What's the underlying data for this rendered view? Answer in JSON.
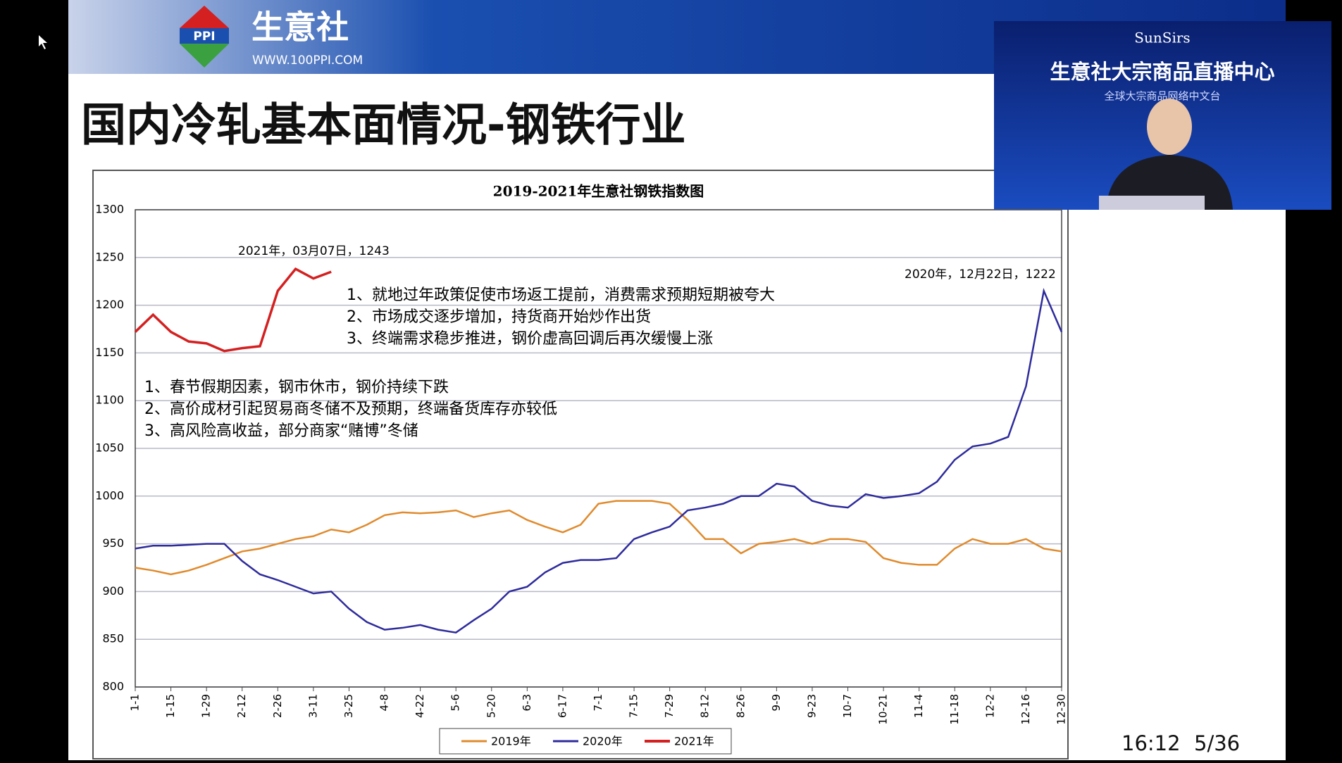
{
  "header": {
    "logo": "PPI",
    "brand": "生意社",
    "url": "WWW.100PPI.COM"
  },
  "slide_title": "国内冷轧基本面情况-钢铁行业",
  "video": {
    "brand": "SunSirs",
    "title": "生意社大宗商品直播中心",
    "subtitle": "全球大宗商品网络中文台"
  },
  "footer": {
    "time": "16:12",
    "page": "5/36"
  },
  "chart_data": {
    "type": "line",
    "title": "2019-2021年生意社钢铁指数图",
    "categories": [
      "1-1",
      null,
      "1-15",
      null,
      "1-29",
      null,
      "2-12",
      null,
      "2-26",
      null,
      "3-11",
      null,
      "3-25",
      null,
      "4-8",
      null,
      "4-22",
      null,
      "5-6",
      null,
      "5-20",
      null,
      "6-3",
      null,
      "6-17",
      null,
      "7-1",
      null,
      "7-15",
      null,
      "7-29",
      null,
      "8-12",
      null,
      "8-26",
      null,
      "9-9",
      null,
      "9-23",
      null,
      "10-7",
      null,
      "10-21",
      null,
      "11-4",
      null,
      "11-18",
      null,
      "12-2",
      null,
      "12-16",
      null,
      "12-30"
    ],
    "series": [
      {
        "name": "2019年",
        "color": "#e08a2c",
        "values": [
          925,
          922,
          918,
          922,
          928,
          935,
          942,
          945,
          950,
          955,
          958,
          965,
          962,
          970,
          980,
          983,
          982,
          983,
          985,
          978,
          982,
          985,
          975,
          968,
          962,
          970,
          992,
          995,
          995,
          995,
          992,
          975,
          955,
          955,
          940,
          950,
          952,
          955,
          950,
          955,
          955,
          952,
          935,
          930,
          928,
          928,
          945,
          955,
          950,
          950,
          955,
          945,
          942
        ]
      },
      {
        "name": "2020年",
        "color": "#2e2b9c",
        "values": [
          945,
          948,
          948,
          949,
          950,
          950,
          932,
          918,
          912,
          905,
          898,
          900,
          882,
          868,
          860,
          862,
          865,
          860,
          857,
          870,
          882,
          900,
          905,
          920,
          930,
          933,
          933,
          935,
          955,
          962,
          968,
          985,
          988,
          992,
          1000,
          1000,
          1013,
          1010,
          995,
          990,
          988,
          1002,
          998,
          1000,
          1003,
          1015,
          1038,
          1052,
          1055,
          1062,
          1115,
          1215,
          1172
        ]
      },
      {
        "name": "2021年",
        "color": "#d42020",
        "values": [
          1172,
          1190,
          1172,
          1162,
          1160,
          1152,
          1155,
          1157,
          1215,
          1238,
          1228,
          1235,
          null,
          null,
          null,
          null,
          null,
          null,
          null,
          null,
          null,
          null,
          null,
          null,
          null,
          null,
          null,
          null,
          null,
          null,
          null,
          null,
          null,
          null,
          null,
          null,
          null,
          null,
          null,
          null,
          null,
          null,
          null,
          null,
          null,
          null,
          null,
          null,
          null,
          null,
          null,
          null,
          null
        ]
      }
    ],
    "ylim": [
      800,
      1300
    ],
    "yticks": [
      800,
      850,
      900,
      950,
      1000,
      1050,
      1100,
      1150,
      1200,
      1250,
      1300
    ],
    "grid": true,
    "annotations": [
      "2021年，03月07日，1243",
      "2020年，12月22日，1222"
    ],
    "notes_2021": [
      "1、就地过年政策促使市场返工提前，消费需求预期短期被夸大",
      "2、市场成交逐步增加，持货商开始炒作出货",
      "3、终端需求稳步推进，钢价虚高回调后再次缓慢上涨"
    ],
    "notes_2019": [
      "1、春节假期因素，钢市休市，钢价持续下跌",
      "2、高价成材引起贸易商冬储不及预期，终端备货库存亦较低",
      "3、高风险高收益，部分商家“赌博”冬储"
    ]
  }
}
